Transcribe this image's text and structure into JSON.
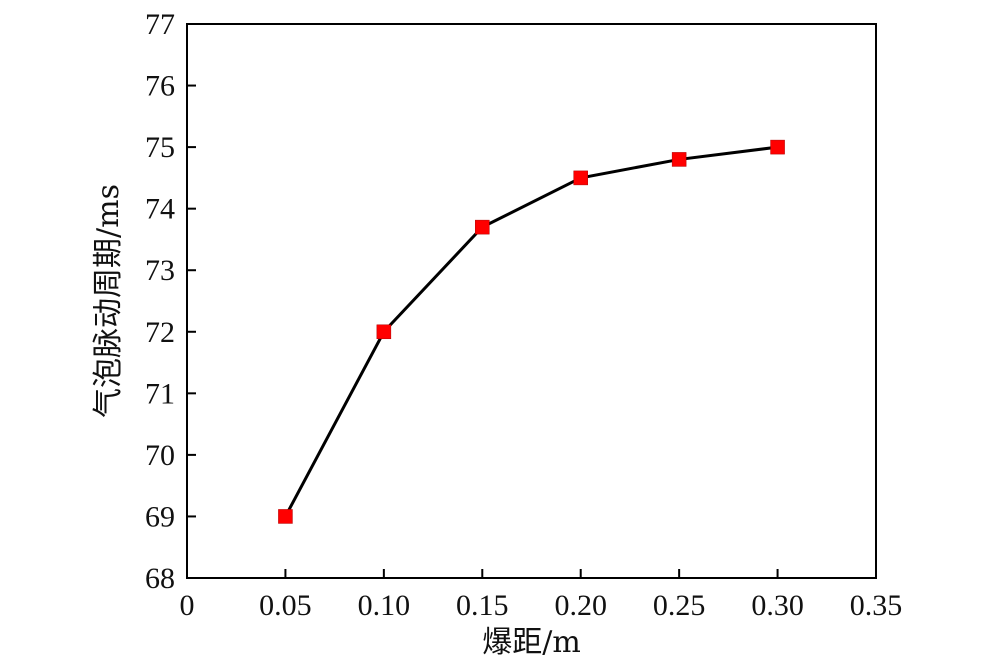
{
  "chart_data": {
    "type": "line",
    "title": "",
    "xlabel": "爆距/m",
    "ylabel": "气泡脉动周期/ms",
    "xlim": [
      0,
      0.35
    ],
    "ylim": [
      68,
      77
    ],
    "xticks": [
      0,
      0.05,
      0.1,
      0.15,
      0.2,
      0.25,
      0.3,
      0.35
    ],
    "xtick_labels": [
      "0",
      "0.05",
      "0.10",
      "0.15",
      "0.20",
      "0.25",
      "0.30",
      "0.35"
    ],
    "yticks": [
      68,
      69,
      70,
      71,
      72,
      73,
      74,
      75,
      76,
      77
    ],
    "ytick_labels": [
      "68",
      "69",
      "70",
      "71",
      "72",
      "73",
      "74",
      "75",
      "76",
      "77"
    ],
    "grid": false,
    "legend": "none",
    "series": [
      {
        "x": [
          0.05,
          0.1,
          0.15,
          0.2,
          0.25,
          0.3
        ],
        "y": [
          69.0,
          72.0,
          73.7,
          74.5,
          74.8,
          75.0
        ],
        "line_color": "#000000",
        "marker": "square",
        "marker_color": "#ff0000"
      }
    ]
  }
}
